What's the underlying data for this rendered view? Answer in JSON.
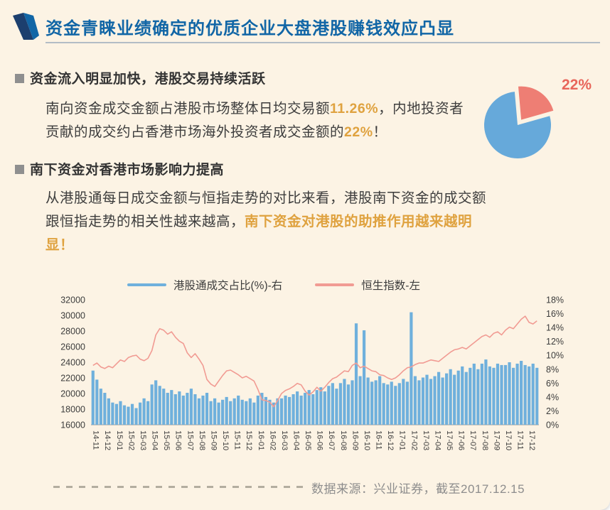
{
  "header": {
    "title": "资金青睐业绩确定的优质企业大盘港股赚钱效应凸显"
  },
  "section1": {
    "heading": "资金流入明显加快，港股交易持续活跃",
    "body_parts": [
      {
        "text": "南向资金成交金额占港股市场整体日均交易额",
        "highlight": false
      },
      {
        "text": "11.26%",
        "highlight": true
      },
      {
        "text": "，内地投资者贡献的成交约占香港市场海外投资者成交金额的",
        "highlight": false
      },
      {
        "text": "22%",
        "highlight": true
      },
      {
        "text": "！",
        "highlight": false
      }
    ]
  },
  "section2": {
    "heading": "南下资金对香港市场影响力提高",
    "body_parts": [
      {
        "text": "从港股通每日成交金额与恒指走势的对比来看，港股南下资金的成交额跟恒指走势的相关性越来越高，",
        "highlight": false
      },
      {
        "text": "南下资金对港股的助推作用越来越明显！",
        "highlight": true
      }
    ]
  },
  "footer": {
    "source": "数据来源：兴业证券，截至2017.12.15"
  },
  "colors": {
    "title_blue": "#1166a6",
    "highlight_orange": "#dfa23f",
    "pie_blue": "#66a9da",
    "pie_red": "#ee7e74",
    "pie_label_red": "#e8655a",
    "bar_blue": "#6fb0dc",
    "line_pink": "#f19b93",
    "background_cream": "#fcf3e4",
    "text_dark": "#3d3d3d",
    "text_gray": "#8d8d8d"
  },
  "chart_data": [
    {
      "type": "pie",
      "annotation": "22%",
      "annotation_color": "#e8655a",
      "slices": [
        {
          "label": "22%",
          "value": 22,
          "color": "#ee7e74",
          "exploded": true
        },
        {
          "label": "",
          "value": 78,
          "color": "#66a9da",
          "exploded": false
        }
      ]
    },
    {
      "type": "combo",
      "legend": [
        {
          "label": "港股通成交占比(%)-右",
          "color": "#6fb0dc",
          "series": "bars"
        },
        {
          "label": "恒生指数-左",
          "color": "#f19b93",
          "series": "line"
        }
      ],
      "left_axis": {
        "label": "恒生指数-左",
        "min": 16000,
        "max": 32000,
        "ticks": [
          "32000",
          "30000",
          "28000",
          "26000",
          "24000",
          "22000",
          "20000",
          "18000",
          "16000"
        ]
      },
      "right_axis": {
        "label": "港股通成交占比(%)-右",
        "min": 0,
        "max": 18,
        "ticks": [
          "18%",
          "16%",
          "14%",
          "12%",
          "10%",
          "8%",
          "6%",
          "4%",
          "2%",
          "0%"
        ]
      },
      "x_labels": [
        "14-11",
        "14-12",
        "15-01",
        "15-02",
        "15-03",
        "15-04",
        "15-05",
        "15-06",
        "15-07",
        "15-08",
        "15-09",
        "15-10",
        "15-11",
        "15-12",
        "16-01",
        "16-02",
        "16-03",
        "16-04",
        "16-05",
        "16-06",
        "16-07",
        "16-08",
        "16-09",
        "16-10",
        "16-11",
        "16-12",
        "17-01",
        "17-02",
        "17-03",
        "17-04",
        "17-05",
        "17-06",
        "17-07",
        "17-08",
        "17-09",
        "17-10",
        "17-11",
        "17-12"
      ],
      "bars": {
        "name": "港股通成交占比(%)-右",
        "axis": "right",
        "color": "#6fb0dc",
        "values": [
          7.8,
          6.5,
          5.2,
          4.6,
          3.8,
          3.2,
          3.0,
          3.4,
          2.8,
          2.6,
          3.0,
          2.4,
          3.2,
          3.8,
          3.4,
          5.8,
          6.4,
          5.6,
          5.2,
          4.6,
          5.0,
          4.4,
          4.8,
          4.2,
          4.6,
          5.2,
          4.4,
          3.8,
          4.2,
          4.6,
          3.4,
          3.8,
          3.2,
          3.6,
          4.0,
          3.4,
          3.8,
          4.2,
          3.6,
          3.4,
          3.8,
          3.2,
          4.2,
          4.6,
          4.0,
          3.6,
          3.2,
          3.8,
          3.8,
          4.2,
          4.0,
          4.4,
          4.8,
          4.2,
          4.6,
          5.0,
          4.4,
          5.0,
          5.4,
          4.8,
          5.6,
          6.0,
          5.2,
          6.0,
          6.6,
          5.8,
          6.4,
          14.6,
          7.0,
          13.6,
          6.8,
          6.2,
          6.4,
          7.0,
          6.0,
          5.8,
          6.2,
          5.6,
          6.0,
          6.6,
          6.2,
          16.2,
          7.0,
          6.4,
          6.8,
          7.2,
          6.6,
          7.0,
          7.6,
          6.8,
          7.4,
          8.0,
          7.2,
          7.8,
          8.4,
          7.6,
          8.2,
          8.8,
          8.0,
          8.8,
          9.4,
          8.4,
          8.2,
          8.8,
          8.6,
          8.6,
          9.0,
          8.2,
          8.8,
          9.2,
          8.6,
          8.4,
          8.8,
          8.2
        ]
      },
      "line": {
        "name": "恒生指数-左",
        "axis": "left",
        "color": "#f19b93",
        "values": [
          23600,
          23900,
          23400,
          23200,
          23500,
          23300,
          23800,
          24300,
          24100,
          24600,
          24800,
          24900,
          24400,
          24200,
          24500,
          25500,
          27500,
          28300,
          28100,
          27600,
          27900,
          27200,
          26700,
          26400,
          25200,
          24600,
          25100,
          24400,
          23600,
          21800,
          21200,
          20900,
          21600,
          22300,
          22900,
          23000,
          22700,
          22400,
          22000,
          22200,
          21900,
          21600,
          20500,
          19200,
          19100,
          18900,
          18300,
          19100,
          20000,
          20400,
          20600,
          20900,
          21300,
          21100,
          20300,
          19800,
          20200,
          20800,
          20300,
          20800,
          21400,
          21900,
          22100,
          22500,
          22900,
          22800,
          23600,
          23900,
          23300,
          23500,
          23200,
          22900,
          22800,
          22400,
          22300,
          22000,
          21800,
          22000,
          22400,
          22900,
          23300,
          23400,
          23700,
          23900,
          23900,
          24100,
          24300,
          24200,
          24100,
          24500,
          24900,
          25300,
          25600,
          25700,
          25900,
          25700,
          26100,
          26500,
          26900,
          27300,
          27500,
          27200,
          27700,
          27900,
          27500,
          28100,
          28500,
          28300,
          28900,
          29500,
          29900,
          29100,
          28900,
          29300
        ]
      }
    }
  ]
}
